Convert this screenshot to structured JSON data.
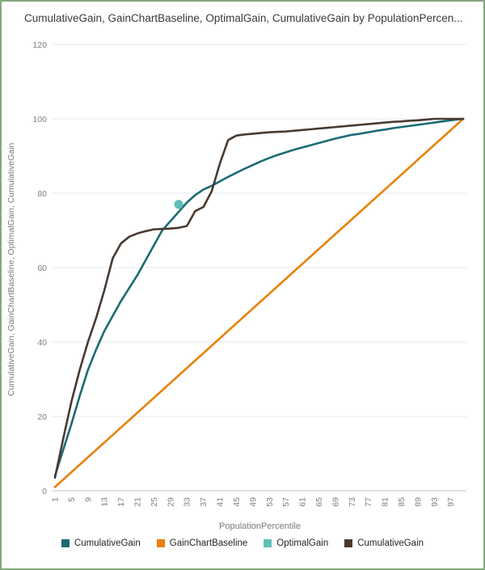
{
  "title": "CumulativeGain, GainChartBaseline, OptimalGain, CumulativeGain by PopulationPercen...",
  "frame": {
    "border_color": "#84a87e"
  },
  "chart_data": {
    "type": "line",
    "title": "CumulativeGain, GainChartBaseline, OptimalGain, CumulativeGain by PopulationPercen...",
    "xlabel": "PopulationPercentile",
    "ylabel": "CumulativeGain, GainChartBaseline, OptimalGain, CumulativeGain",
    "ylim": [
      0,
      120
    ],
    "xlim": [
      1,
      100
    ],
    "grid": true,
    "legend_position": "bottom",
    "y_ticks": [
      0,
      20,
      40,
      60,
      80,
      100,
      120
    ],
    "x_ticks": [
      1,
      5,
      9,
      13,
      17,
      21,
      25,
      29,
      33,
      37,
      41,
      45,
      49,
      53,
      57,
      61,
      65,
      69,
      73,
      77,
      81,
      85,
      89,
      93,
      97
    ],
    "x": [
      1,
      3,
      5,
      7,
      9,
      11,
      13,
      15,
      17,
      19,
      21,
      23,
      25,
      27,
      29,
      31,
      33,
      35,
      37,
      39,
      41,
      43,
      45,
      47,
      49,
      51,
      53,
      55,
      57,
      59,
      61,
      63,
      65,
      67,
      69,
      71,
      73,
      75,
      77,
      79,
      81,
      83,
      85,
      87,
      89,
      91,
      93,
      95,
      97,
      99,
      100
    ],
    "series": [
      {
        "name": "CumulativeGain",
        "color": "#1c6b74",
        "style": "line",
        "values": [
          4,
          11,
          18,
          25.5,
          32.5,
          38,
          43,
          47,
          51,
          54.5,
          58,
          62,
          66,
          70,
          72.5,
          75,
          77.5,
          79.5,
          81,
          82,
          83.2,
          84.4,
          85.5,
          86.6,
          87.6,
          88.6,
          89.5,
          90.3,
          91,
          91.7,
          92.3,
          92.9,
          93.5,
          94.1,
          94.7,
          95.2,
          95.7,
          96,
          96.4,
          96.8,
          97.1,
          97.5,
          97.8,
          98.1,
          98.4,
          98.7,
          99,
          99.3,
          99.6,
          99.9,
          100
        ]
      },
      {
        "name": "GainChartBaseline",
        "color": "#e8810c",
        "style": "line",
        "x": [
          1,
          100
        ],
        "values": [
          1,
          100
        ]
      },
      {
        "name": "OptimalGain",
        "color": "#5fbfb9",
        "style": "point",
        "x": [
          31
        ],
        "values": [
          77
        ]
      },
      {
        "name": "CumulativeGain",
        "color": "#483a31",
        "style": "line",
        "values": [
          3.5,
          14,
          24,
          32.5,
          40,
          46.5,
          54,
          62.5,
          66.5,
          68.3,
          69.2,
          69.8,
          70.3,
          70.4,
          70.5,
          70.7,
          71.2,
          75.2,
          76.3,
          80.5,
          88,
          94.3,
          95.5,
          95.8,
          96,
          96.2,
          96.4,
          96.5,
          96.6,
          96.8,
          97,
          97.2,
          97.4,
          97.6,
          97.8,
          98,
          98.2,
          98.4,
          98.6,
          98.8,
          99,
          99.2,
          99.3,
          99.5,
          99.6,
          99.8,
          100,
          100,
          100,
          100,
          100
        ]
      }
    ]
  },
  "legend": {
    "items": [
      {
        "label": "CumulativeGain",
        "color": "#1c6b74"
      },
      {
        "label": "GainChartBaseline",
        "color": "#e8810c"
      },
      {
        "label": "OptimalGain",
        "color": "#5fbfb9"
      },
      {
        "label": "CumulativeGain",
        "color": "#483a31"
      }
    ]
  },
  "axis_colors": {
    "gridline": "#e7eaef",
    "axis_line": "#c0c3c7",
    "tick_label": "#808080"
  }
}
